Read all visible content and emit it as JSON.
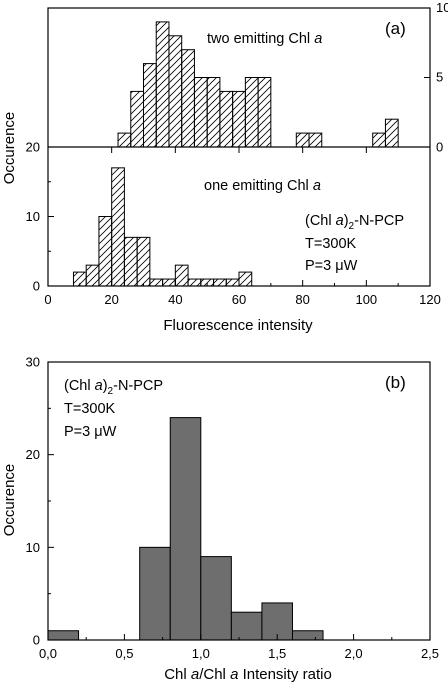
{
  "chart_data": [
    {
      "panel": "(a)",
      "type": "bar",
      "xlabel": "Fluorescence intensity",
      "ylabel": "Occurence",
      "x_ticks": [
        0,
        20,
        40,
        60,
        80,
        100,
        120
      ],
      "xlim": [
        0,
        120
      ],
      "subpanels": [
        {
          "name": "top",
          "label": "two emitting Chl a",
          "label_main": "two emitting Chl ",
          "label_italic": "a",
          "ylim": [
            0,
            10
          ],
          "y_ticks_right": [
            0,
            5,
            10
          ],
          "y_ticks_left": [
            0
          ],
          "bin_width": 4,
          "bins": [
            {
              "x0": 22,
              "count": 1
            },
            {
              "x0": 26,
              "count": 4
            },
            {
              "x0": 30,
              "count": 6
            },
            {
              "x0": 34,
              "count": 9
            },
            {
              "x0": 38,
              "count": 8
            },
            {
              "x0": 42,
              "count": 7
            },
            {
              "x0": 46,
              "count": 5
            },
            {
              "x0": 50,
              "count": 5
            },
            {
              "x0": 54,
              "count": 4
            },
            {
              "x0": 58,
              "count": 4
            },
            {
              "x0": 62,
              "count": 5
            },
            {
              "x0": 66,
              "count": 5
            },
            {
              "x0": 78,
              "count": 1
            },
            {
              "x0": 82,
              "count": 1
            },
            {
              "x0": 102,
              "count": 1
            },
            {
              "x0": 106,
              "count": 2
            }
          ]
        },
        {
          "name": "bottom",
          "label": "one emitting Chl a",
          "label_main": "one emitting Chl ",
          "label_italic": "a",
          "ylim": [
            0,
            20
          ],
          "y_ticks_left": [
            0,
            10,
            20
          ],
          "bin_width": 4,
          "bins": [
            {
              "x0": 8,
              "count": 2
            },
            {
              "x0": 12,
              "count": 3
            },
            {
              "x0": 16,
              "count": 10
            },
            {
              "x0": 20,
              "count": 17
            },
            {
              "x0": 24,
              "count": 7
            },
            {
              "x0": 28,
              "count": 7
            },
            {
              "x0": 32,
              "count": 1
            },
            {
              "x0": 36,
              "count": 1
            },
            {
              "x0": 40,
              "count": 3
            },
            {
              "x0": 44,
              "count": 1
            },
            {
              "x0": 48,
              "count": 1
            },
            {
              "x0": 52,
              "count": 1
            },
            {
              "x0": 56,
              "count": 1
            },
            {
              "x0": 60,
              "count": 2
            }
          ]
        }
      ],
      "annotation": {
        "line1_a": "(Chl ",
        "line1_b": "a",
        "line1_c": ")",
        "line1_sub": "2",
        "line1_d": "-N-PCP",
        "line2": "T=300K",
        "line3_a": "P=3 ",
        "line3_b": "μW"
      }
    },
    {
      "panel": "(b)",
      "type": "bar",
      "xlabel": "Chl a/Chl a Intensity ratio",
      "xlabel_parts": [
        "Chl ",
        "a",
        "/Chl ",
        "a",
        " Intensity ratio"
      ],
      "ylabel": "Occurence",
      "xlim": [
        0,
        2.5
      ],
      "ylim": [
        0,
        30
      ],
      "x_ticks": [
        "0,0",
        "0,5",
        "1,0",
        "1,5",
        "2,0",
        "2,5"
      ],
      "x_tick_values": [
        0,
        0.5,
        1.0,
        1.5,
        2.0,
        2.5
      ],
      "y_ticks": [
        0,
        10,
        20,
        30
      ],
      "bin_width": 0.2,
      "bins": [
        {
          "x0": 0.0,
          "count": 1
        },
        {
          "x0": 0.2,
          "count": 0
        },
        {
          "x0": 0.4,
          "count": 0
        },
        {
          "x0": 0.6,
          "count": 10
        },
        {
          "x0": 0.8,
          "count": 24
        },
        {
          "x0": 1.0,
          "count": 9
        },
        {
          "x0": 1.2,
          "count": 3
        },
        {
          "x0": 1.4,
          "count": 4
        },
        {
          "x0": 1.6,
          "count": 1
        }
      ],
      "bar_color": "#6e6e6e",
      "annotation": {
        "line1_a": "(Chl ",
        "line1_b": "a",
        "line1_c": ")",
        "line1_sub": "2",
        "line1_d": "-N-PCP",
        "line2": "T=300K",
        "line3_a": "P=3 ",
        "line3_b": "μW"
      }
    }
  ]
}
